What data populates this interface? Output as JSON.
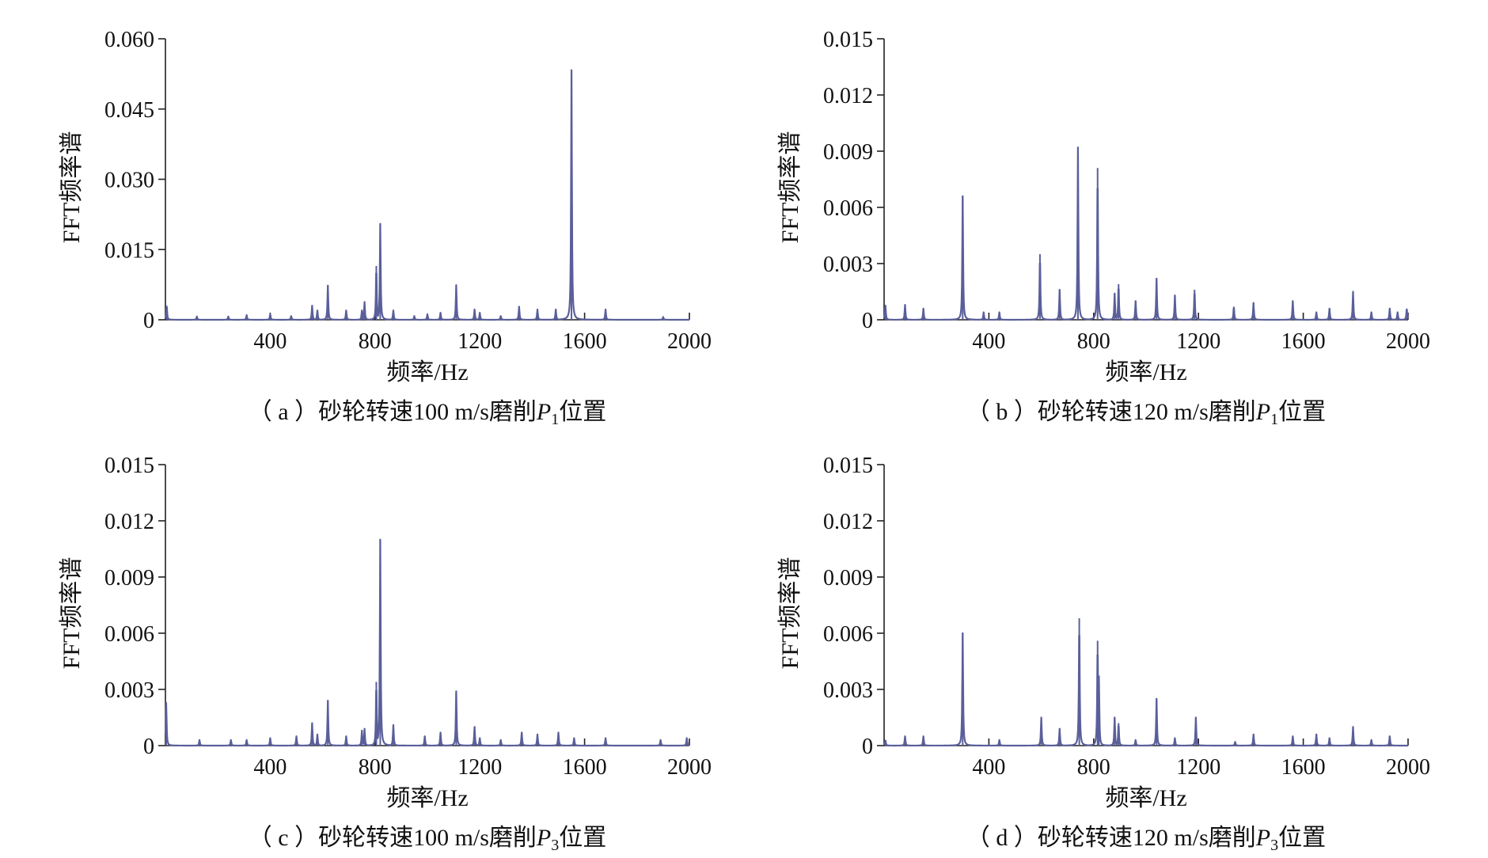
{
  "chart_data": [
    {
      "type": "line",
      "caption": "（ a ）砂轮转速100 m/s磨削P1位置",
      "caption_parts": [
        "（ a ）砂轮转速100 m/s磨削",
        "P",
        "1",
        "位置"
      ],
      "xlabel": "频率/Hz",
      "ylabel": "FFT频率谱",
      "xlim": [
        0,
        2000
      ],
      "ylim": [
        0,
        0.06
      ],
      "xticks": [
        400,
        800,
        1200,
        1600,
        2000
      ],
      "xtick_labels": [
        "400",
        "800",
        "1200",
        "1600",
        "2000"
      ],
      "yticks": [
        0,
        0.015,
        0.03,
        0.045,
        0.06
      ],
      "ytick_labels": [
        "0",
        "0.015",
        "0.030",
        "0.045",
        "0.060"
      ],
      "color": "#5a5f9a",
      "peaks": [
        [
          5,
          0.003
        ],
        [
          120,
          0.0007
        ],
        [
          240,
          0.0007
        ],
        [
          310,
          0.001
        ],
        [
          400,
          0.0012
        ],
        [
          480,
          0.0008
        ],
        [
          560,
          0.003
        ],
        [
          580,
          0.002
        ],
        [
          620,
          0.0073
        ],
        [
          690,
          0.002
        ],
        [
          750,
          0.002
        ],
        [
          760,
          0.0038
        ],
        [
          805,
          0.0115
        ],
        [
          820,
          0.0205
        ],
        [
          870,
          0.002
        ],
        [
          950,
          0.0008
        ],
        [
          1000,
          0.0012
        ],
        [
          1050,
          0.0015
        ],
        [
          1110,
          0.0074
        ],
        [
          1180,
          0.0022
        ],
        [
          1200,
          0.0015
        ],
        [
          1280,
          0.0008
        ],
        [
          1350,
          0.0028
        ],
        [
          1420,
          0.0022
        ],
        [
          1490,
          0.0022
        ],
        [
          1550,
          0.0533
        ],
        [
          1680,
          0.0022
        ],
        [
          1900,
          0.0006
        ]
      ]
    },
    {
      "type": "line",
      "caption": "（ b ）砂轮转速120 m/s磨削P1位置",
      "caption_parts": [
        "（ b ）砂轮转速120 m/s磨削",
        "P",
        "1",
        "位置"
      ],
      "xlabel": "频率/Hz",
      "ylabel": "FFT频率谱",
      "xlim": [
        0,
        2000
      ],
      "ylim": [
        0,
        0.015
      ],
      "xticks": [
        400,
        800,
        1200,
        1600,
        2000
      ],
      "xtick_labels": [
        "400",
        "800",
        "1200",
        "1600",
        "2000"
      ],
      "yticks": [
        0,
        0.003,
        0.006,
        0.009,
        0.012,
        0.015
      ],
      "ytick_labels": [
        "0",
        "0.003",
        "0.006",
        "0.009",
        "0.012",
        "0.015"
      ],
      "color": "#5a5f9a",
      "peaks": [
        [
          5,
          0.0008
        ],
        [
          80,
          0.0008
        ],
        [
          150,
          0.0006
        ],
        [
          300,
          0.0066
        ],
        [
          380,
          0.0004
        ],
        [
          440,
          0.0004
        ],
        [
          595,
          0.0035
        ],
        [
          670,
          0.0016
        ],
        [
          740,
          0.0092
        ],
        [
          815,
          0.0081
        ],
        [
          880,
          0.0014
        ],
        [
          895,
          0.0019
        ],
        [
          960,
          0.001
        ],
        [
          1040,
          0.0022
        ],
        [
          1110,
          0.0013
        ],
        [
          1185,
          0.0016
        ],
        [
          1335,
          0.0007
        ],
        [
          1410,
          0.0009
        ],
        [
          1560,
          0.001
        ],
        [
          1650,
          0.0004
        ],
        [
          1700,
          0.0006
        ],
        [
          1790,
          0.0015
        ],
        [
          1860,
          0.0004
        ],
        [
          1930,
          0.0006
        ],
        [
          1960,
          0.0004
        ],
        [
          1995,
          0.0006
        ]
      ]
    },
    {
      "type": "line",
      "caption": "（ c ）砂轮转速100 m/s磨削P3位置",
      "caption_parts": [
        "（ c ）砂轮转速100 m/s磨削",
        "P",
        "3",
        "位置"
      ],
      "xlabel": "频率/Hz",
      "ylabel": "FFT频率谱",
      "xlim": [
        0,
        2000
      ],
      "ylim": [
        0,
        0.015
      ],
      "xticks": [
        400,
        800,
        1200,
        1600,
        2000
      ],
      "xtick_labels": [
        "400",
        "800",
        "1200",
        "1600",
        "2000"
      ],
      "yticks": [
        0,
        0.003,
        0.006,
        0.009,
        0.012,
        0.015
      ],
      "ytick_labels": [
        "0",
        "0.003",
        "0.006",
        "0.009",
        "0.012",
        "0.015"
      ],
      "color": "#5a5f9a",
      "peaks": [
        [
          3,
          0.0023
        ],
        [
          130,
          0.0003
        ],
        [
          250,
          0.0003
        ],
        [
          310,
          0.0003
        ],
        [
          400,
          0.0004
        ],
        [
          500,
          0.0005
        ],
        [
          560,
          0.0012
        ],
        [
          580,
          0.0006
        ],
        [
          620,
          0.0024
        ],
        [
          690,
          0.0005
        ],
        [
          750,
          0.0008
        ],
        [
          760,
          0.0009
        ],
        [
          805,
          0.0034
        ],
        [
          820,
          0.011
        ],
        [
          870,
          0.0011
        ],
        [
          990,
          0.0005
        ],
        [
          1050,
          0.0007
        ],
        [
          1110,
          0.0029
        ],
        [
          1180,
          0.001
        ],
        [
          1200,
          0.0004
        ],
        [
          1280,
          0.0003
        ],
        [
          1360,
          0.0007
        ],
        [
          1420,
          0.0006
        ],
        [
          1500,
          0.0007
        ],
        [
          1560,
          0.0004
        ],
        [
          1680,
          0.0004
        ],
        [
          1890,
          0.0003
        ],
        [
          1990,
          0.0004
        ]
      ]
    },
    {
      "type": "line",
      "caption": "（ d ）砂轮转速120 m/s磨削P3位置",
      "caption_parts": [
        "（ d ）砂轮转速120 m/s磨削",
        "P",
        "3",
        "位置"
      ],
      "xlabel": "频率/Hz",
      "ylabel": "FFT频率谱",
      "xlim": [
        0,
        2000
      ],
      "ylim": [
        0,
        0.015
      ],
      "xticks": [
        400,
        800,
        1200,
        1600,
        2000
      ],
      "xtick_labels": [
        "400",
        "800",
        "1200",
        "1600",
        "2000"
      ],
      "yticks": [
        0,
        0.003,
        0.006,
        0.009,
        0.012,
        0.015
      ],
      "ytick_labels": [
        "0",
        "0.003",
        "0.006",
        "0.009",
        "0.012",
        "0.015"
      ],
      "color": "#5a5f9a",
      "peaks": [
        [
          5,
          0.0003
        ],
        [
          80,
          0.0005
        ],
        [
          150,
          0.0005
        ],
        [
          300,
          0.006
        ],
        [
          440,
          0.0003
        ],
        [
          600,
          0.0015
        ],
        [
          670,
          0.0009
        ],
        [
          745,
          0.0068
        ],
        [
          815,
          0.0056
        ],
        [
          820,
          0.0037
        ],
        [
          880,
          0.0015
        ],
        [
          895,
          0.0012
        ],
        [
          960,
          0.0003
        ],
        [
          1040,
          0.0025
        ],
        [
          1110,
          0.0004
        ],
        [
          1190,
          0.0015
        ],
        [
          1340,
          0.0002
        ],
        [
          1410,
          0.0006
        ],
        [
          1560,
          0.0005
        ],
        [
          1650,
          0.0006
        ],
        [
          1700,
          0.0004
        ],
        [
          1790,
          0.001
        ],
        [
          1860,
          0.0003
        ],
        [
          1930,
          0.0005
        ]
      ]
    }
  ]
}
